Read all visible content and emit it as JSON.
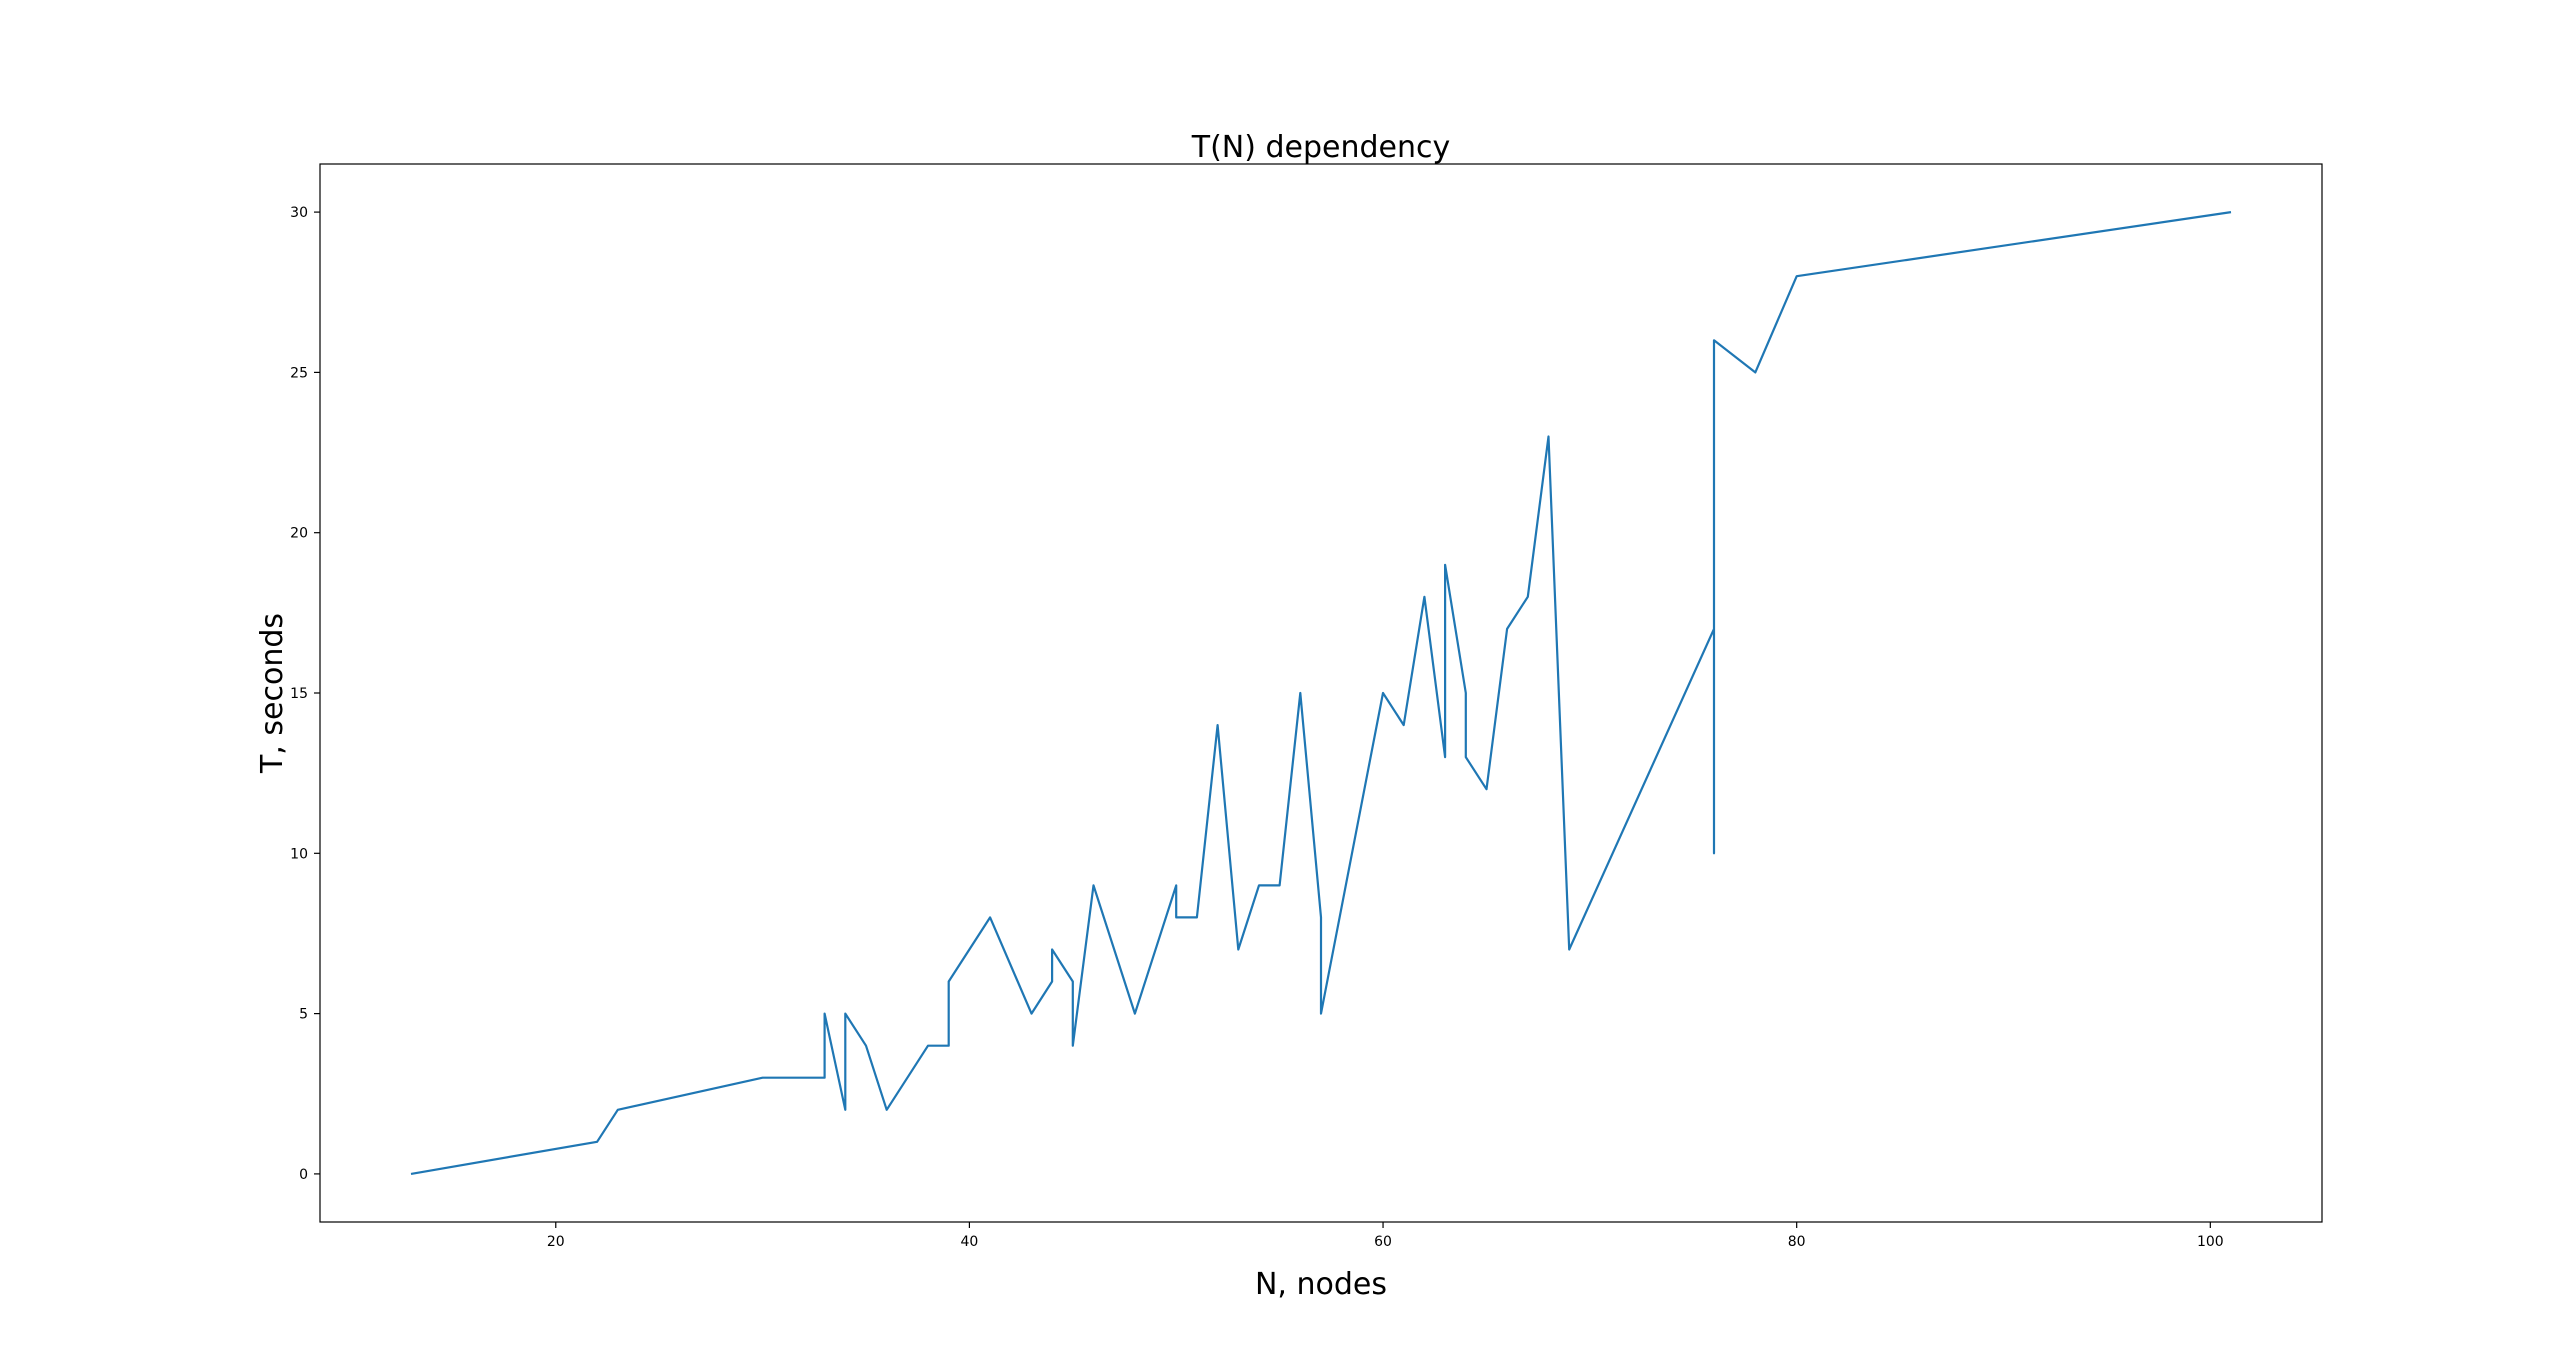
{
  "chart_data": {
    "type": "line",
    "title": "T(N) dependency",
    "xlabel": "N, nodes",
    "ylabel": "T, seconds",
    "xlim": [
      8.6,
      105.4
    ],
    "ylim": [
      -1.5,
      31.5
    ],
    "xticks": [
      20,
      40,
      60,
      80,
      100
    ],
    "yticks": [
      0,
      5,
      10,
      15,
      20,
      25,
      30
    ],
    "grid": false,
    "line_color": "#1f77b4",
    "series": [
      {
        "x": [
          13,
          22,
          23,
          30,
          33,
          33,
          34,
          34,
          35,
          36,
          38,
          39,
          39,
          41,
          43,
          44,
          44,
          45,
          45,
          46,
          48,
          50,
          50,
          51,
          52,
          53,
          54,
          55,
          56,
          57,
          57,
          60,
          61,
          62,
          63,
          63,
          64,
          64,
          65,
          66,
          67,
          68,
          69,
          76,
          76,
          76,
          78,
          80,
          101
        ],
        "y": [
          0,
          1,
          2,
          3,
          3,
          5,
          2,
          5,
          4,
          2,
          4,
          4,
          6,
          8,
          5,
          6,
          7,
          6,
          4,
          9,
          5,
          9,
          8,
          8,
          14,
          7,
          9,
          9,
          15,
          8,
          5,
          15,
          14,
          18,
          13,
          19,
          15,
          13,
          12,
          17,
          18,
          23,
          7,
          17,
          10,
          26,
          25,
          28,
          30
        ]
      }
    ]
  }
}
